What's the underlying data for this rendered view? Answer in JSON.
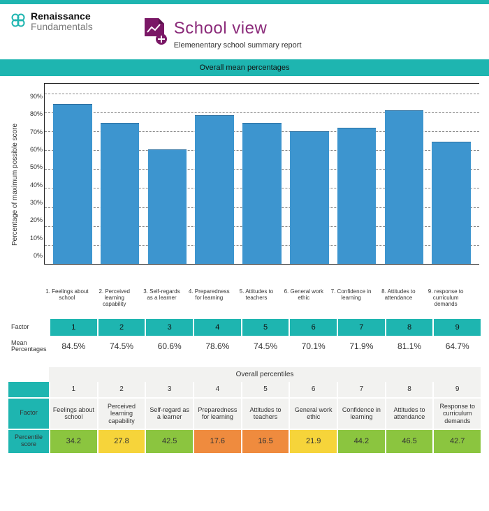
{
  "brand": {
    "line1": "Renaissance",
    "line2": "Fundamentals",
    "icon_color": "#1eb5b0"
  },
  "title": {
    "main": "School view",
    "subtitle": "Elemenentary school summary report",
    "main_color": "#8b2b7a",
    "icon_fill": "#7a1866"
  },
  "chart": {
    "section_title": "Overall mean percentages",
    "type": "bar",
    "y_label": "Percentage of maximum possible score",
    "ylim": [
      0,
      90
    ],
    "y_ticks": [
      "90%",
      "80%",
      "70%",
      "60%",
      "50%",
      "40%",
      "30%",
      "20%",
      "10%",
      "0%"
    ],
    "grid_positions_pct_from_top": [
      5.38,
      15.9,
      26.4,
      36.9,
      47.4,
      57.9,
      68.5,
      79.0,
      89.5
    ],
    "bar_color": "#3d95cf",
    "grid_color": "#888888",
    "border_color": "#222222",
    "categories": [
      "1. Feelings about school",
      "2. Perceived learning capability",
      "3. Self-regards as a learner",
      "4. Preparedness for learning",
      "5. Attitudes to teachers",
      "6. General work ethic",
      "7. Confidence in learning",
      "8. Attitudes to attendance",
      "9. response to curriculum demands"
    ],
    "values": [
      84.5,
      74.5,
      60.6,
      78.6,
      74.5,
      70.1,
      71.9,
      81.1,
      64.7
    ]
  },
  "mean_table": {
    "label_factor": "Factor",
    "label_means": "Mean Percentages",
    "header_bg": "#1eb5b0",
    "columns": [
      "1",
      "2",
      "3",
      "4",
      "5",
      "6",
      "7",
      "8",
      "9"
    ],
    "values": [
      "84.5%",
      "74.5%",
      "60.6%",
      "78.6%",
      "74.5%",
      "70.1%",
      "71.9%",
      "81.1%",
      "64.7%"
    ]
  },
  "percentiles": {
    "section_title": "Overall percentiles",
    "label_factor": "Factor",
    "label_score": "Percentile score",
    "label_bg": "#1eb5b0",
    "default_cell_bg": "#f2f2f0",
    "columns": [
      "1",
      "2",
      "3",
      "4",
      "5",
      "6",
      "7",
      "8",
      "9"
    ],
    "names": [
      "Feelings about school",
      "Perceived learning capability",
      "Self-regard as a learner",
      "Preparedness for learning",
      "Attitudes to teachers",
      "General work ethic",
      "Confidence in learning",
      "Attitudes to attendance",
      "Response to curriculum demands"
    ],
    "scores": [
      34.2,
      27.8,
      42.5,
      17.6,
      16.5,
      21.9,
      44.2,
      46.5,
      42.7
    ],
    "score_colors": [
      "#8bc53f",
      "#f6d43a",
      "#8bc53f",
      "#ef8b3e",
      "#ef8b3e",
      "#f6d43a",
      "#8bc53f",
      "#8bc53f",
      "#8bc53f"
    ]
  }
}
